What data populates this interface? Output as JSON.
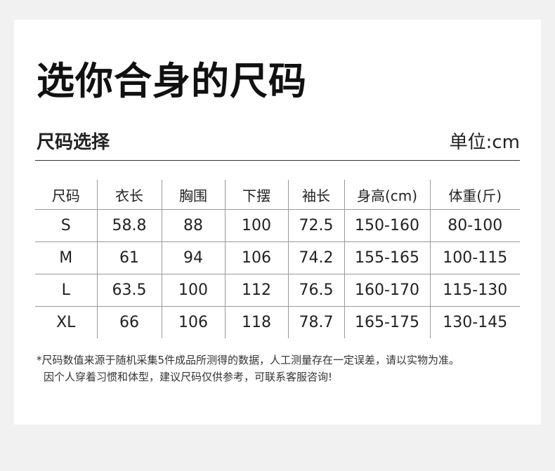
{
  "title": "选你合身的尺码",
  "subtitle": "尺码选择",
  "unit": "单位:cm",
  "table": {
    "headers": [
      "尺码",
      "衣长",
      "胸围",
      "下摆",
      "袖长",
      "身高(cm)",
      "体重(斤)"
    ],
    "rows": [
      [
        "S",
        "58.8",
        "88",
        "100",
        "72.5",
        "150-160",
        "80-100"
      ],
      [
        "M",
        "61",
        "94",
        "106",
        "74.2",
        "155-165",
        "100-115"
      ],
      [
        "L",
        "63.5",
        "100",
        "112",
        "76.5",
        "160-170",
        "115-130"
      ],
      [
        "XL",
        "66",
        "106",
        "118",
        "78.7",
        "165-175",
        "130-145"
      ]
    ]
  },
  "notes": [
    "*尺码数值来源于随机采集5件成品所测得的数据，人工测量存在一定误差，请以实物为准。",
    "因个人穿着习惯和体型，建议尺码仅供参考，可联系客服咨询!"
  ]
}
